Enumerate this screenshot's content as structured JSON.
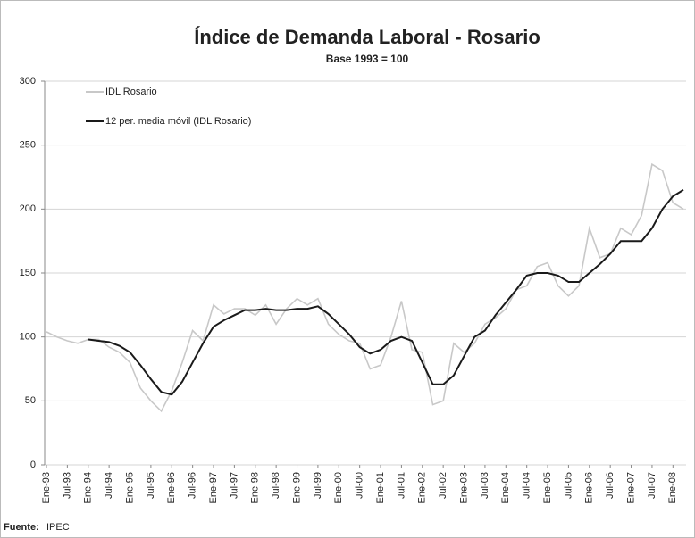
{
  "chart_data": {
    "type": "line",
    "title": "Índice de Demanda Laboral - Rosario",
    "subtitle": "Base 1993 = 100",
    "source_label": "Fuente:",
    "source": "IPEC",
    "categories": [
      "Ene-93",
      null,
      "Jul-93",
      null,
      "Ene-94",
      null,
      "Jul-94",
      null,
      "Ene-95",
      null,
      "Jul-95",
      null,
      "Ene-96",
      null,
      "Jul-96",
      null,
      "Ene-97",
      null,
      "Jul-97",
      null,
      "Ene-98",
      null,
      "Jul-98",
      null,
      "Ene-99",
      null,
      "Jul-99",
      null,
      "Ene-00",
      null,
      "Jul-00",
      null,
      "Ene-01",
      null,
      "Jul-01",
      null,
      "Ene-02",
      null,
      "Jul-02",
      null,
      "Ene-03",
      null,
      "Jul-03",
      null,
      "Ene-04",
      null,
      "Jul-04",
      null,
      "Ene-05",
      null,
      "Jul-05",
      null,
      "Ene-06",
      null,
      "Jul-06",
      null,
      "Ene-07",
      null,
      "Jul-07",
      null,
      "Ene-08",
      null
    ],
    "series": [
      {
        "name": "IDL Rosario",
        "color": "#c8c8c8",
        "values": [
          104,
          100,
          97,
          95,
          98,
          98,
          92,
          88,
          80,
          60,
          50,
          42,
          58,
          80,
          105,
          97,
          125,
          118,
          122,
          122,
          117,
          125,
          110,
          122,
          130,
          125,
          130,
          110,
          102,
          97,
          95,
          75,
          78,
          100,
          128,
          90,
          88,
          47,
          50,
          95,
          88,
          95,
          110,
          115,
          122,
          137,
          140,
          155,
          158,
          140,
          132,
          140,
          185,
          162,
          165,
          185,
          180,
          195,
          235,
          230,
          205,
          200
        ]
      },
      {
        "name": "12 per. media móvil (IDL Rosario)",
        "color": "#1a1a1a",
        "values": [
          null,
          null,
          null,
          null,
          98,
          97,
          96,
          93,
          88,
          78,
          67,
          57,
          55,
          65,
          80,
          95,
          108,
          113,
          117,
          121,
          121,
          122,
          121,
          121,
          122,
          122,
          124,
          118,
          110,
          102,
          92,
          87,
          90,
          97,
          100,
          97,
          80,
          63,
          63,
          70,
          85,
          100,
          105,
          117,
          127,
          137,
          148,
          150,
          150,
          148,
          143,
          143,
          150,
          157,
          165,
          175,
          175,
          175,
          185,
          200,
          210,
          215
        ]
      }
    ],
    "ylim": [
      0,
      300
    ],
    "yticks": [
      0,
      50,
      100,
      150,
      200,
      250,
      300
    ],
    "grid": true
  }
}
